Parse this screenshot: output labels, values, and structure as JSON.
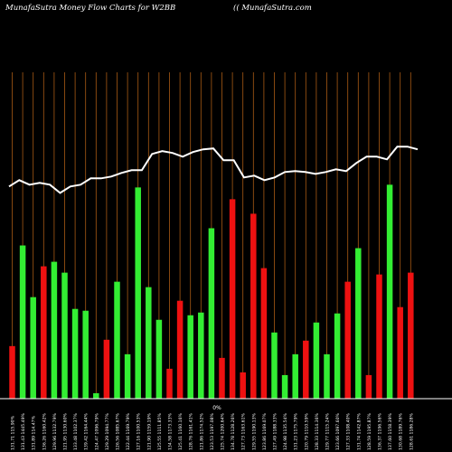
{
  "header": {
    "title": "MunafaSutra  Money Flow  Charts for W2BB",
    "source": "(( MunafaSutra.com"
  },
  "chart_data": {
    "type": "bar",
    "series": [
      {
        "name": "money-flow",
        "values": [
          58,
          169,
          112,
          146,
          151,
          139,
          99,
          97,
          6,
          65,
          129,
          49,
          233,
          123,
          87,
          33,
          108,
          92,
          95,
          188,
          45,
          220,
          29,
          204,
          144,
          73,
          26,
          49,
          64,
          84,
          49,
          94,
          129,
          166,
          26,
          137,
          236,
          101,
          139
        ]
      },
      {
        "name": "line",
        "values": [
          234,
          241,
          236,
          238,
          236,
          227,
          234,
          236,
          243,
          243,
          245,
          249,
          252,
          252,
          270,
          273,
          271,
          267,
          272,
          275,
          276,
          263,
          263,
          244,
          246,
          241,
          244,
          250,
          251,
          250,
          248,
          250,
          253,
          251,
          260,
          267,
          267,
          264,
          278,
          278,
          275
        ]
      }
    ],
    "colors": [
      "red",
      "green",
      "green",
      "red",
      "green",
      "green",
      "green",
      "green",
      "green",
      "red",
      "green",
      "green",
      "green",
      "green",
      "green",
      "red",
      "red",
      "green",
      "green",
      "green",
      "red",
      "red",
      "red",
      "red",
      "red",
      "green",
      "green",
      "green",
      "red",
      "green",
      "green",
      "green",
      "red",
      "green",
      "red",
      "red",
      "green",
      "red",
      "red"
    ],
    "palette": {
      "green": "#33ee33",
      "red": "#ee1111",
      "line": "#ffffff",
      "grid": "#a85a14",
      "background": "#000000"
    },
    "x_tick_labels": [
      "131.71 115.90%",
      "131.43 1445.49%",
      "131.89 114.47%",
      "136.26 1160.42%",
      "129.96 1132.79%",
      "121.95 1130.60%",
      "133.48 1102.37%",
      "139.42 1164.44%",
      "124.47 1096.79%",
      "129.29 1094.77%",
      "126.56 1085.67%",
      "122.44 1169.79%",
      "127.16 1100.53%",
      "121.90 1159.19%",
      "125.55 1111.85%",
      "134.58 1173.33%",
      "125.41 1160.16%",
      "128.76 1161.41%",
      "121.86 1174.52%",
      "123.53 1197.08%",
      "125.74 1200.64%",
      "134.78 1128.26%",
      "127.73 1163.61%",
      "129.55 1190.13%",
      "123.86 1169.07%",
      "127.49 1188.33%",
      "124.98 1135.54%",
      "131.23 1175.79%",
      "120.79 1110.59%",
      "128.33 1114.36%",
      "129.77 1115.24%",
      "123.66 1097.60%",
      "127.33 1108.40%",
      "131.74 1142.87%",
      "128.59 1195.87%",
      "136.37 1196.56%",
      "137.60 1158.39%",
      "130.68 1189.76%",
      "128.61 1186.28%"
    ],
    "center_label": "0%",
    "ylim": [
      0,
      360
    ],
    "grid": "vertical"
  }
}
